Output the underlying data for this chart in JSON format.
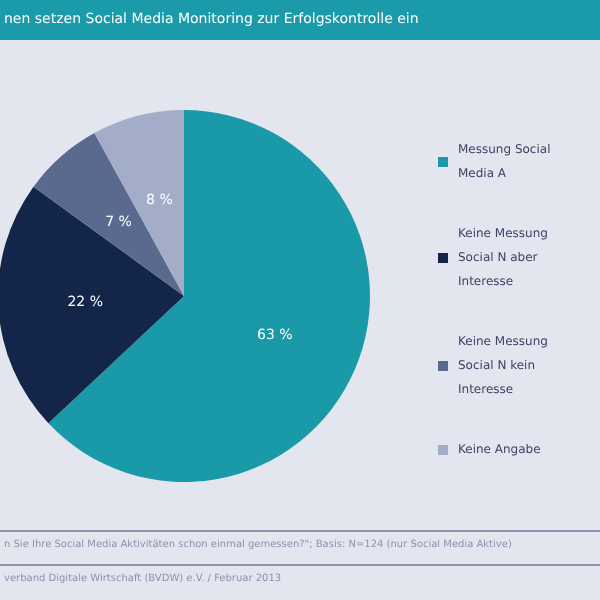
{
  "chart_data": {
    "type": "pie",
    "title": "nen setzen Social Media Monitoring zur Erfolgskontrolle ein",
    "categories": [
      "Messung Social Media A",
      "Keine Messung Social N aber Interesse",
      "Keine Messung Social N kein Interesse",
      "Keine Angabe"
    ],
    "values": [
      63,
      22,
      7,
      8
    ],
    "value_labels": [
      "63 %",
      "22 %",
      "7 %",
      "8 %"
    ],
    "colors": [
      "#1a9aa8",
      "#14254a",
      "#5a6a8e",
      "#a4adc8"
    ],
    "legend": "right",
    "annotations": [
      "n Sie Ihre Social Media Aktivitäten schon einmal gemessen?\"; Basis: N=124 (nur Social Media Aktive)",
      "verband Digitale Wirtschaft (BVDW) e.V. / Februar 2013"
    ]
  }
}
